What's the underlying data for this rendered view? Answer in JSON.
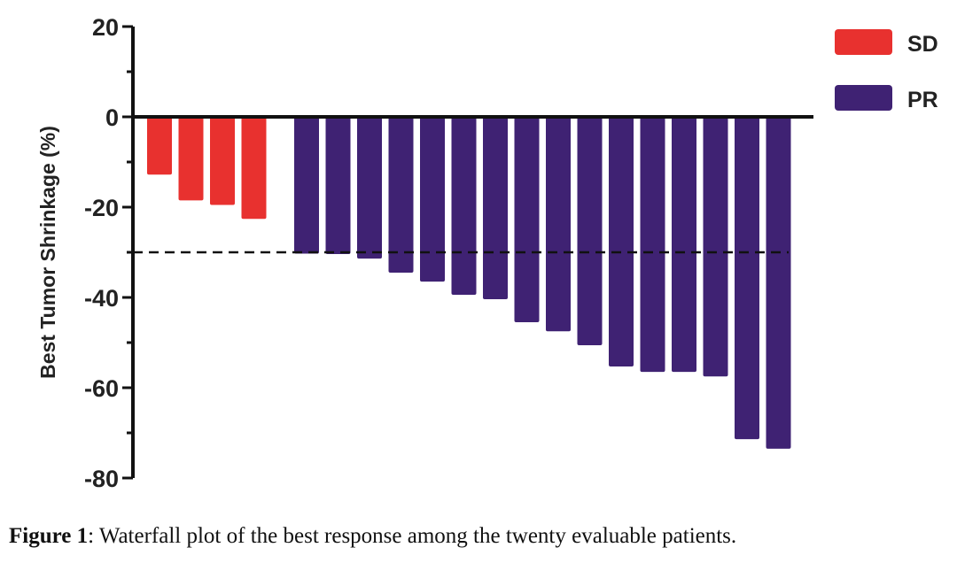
{
  "chart_data": {
    "type": "bar",
    "title": "",
    "xlabel": "",
    "ylabel": "Best Tumor Shrinkage (%)",
    "ylim": [
      -80,
      20
    ],
    "yticks": [
      20,
      0,
      -20,
      -40,
      -60,
      -80
    ],
    "yticklabels": [
      "20",
      "0",
      "-20",
      "-40",
      "-60",
      "-80"
    ],
    "reference_line": -30,
    "legend_position": "top-right",
    "series": [
      {
        "name": "SD",
        "color": "#e8312f",
        "values": [
          -12.8,
          -18.5,
          -19.5,
          -22.6
        ]
      },
      {
        "name": "PR",
        "color": "#3f2273",
        "values": [
          -30.3,
          -30.4,
          -31.4,
          -34.5,
          -36.5,
          -39.4,
          -40.4,
          -45.5,
          -47.5,
          -50.6,
          -55.3,
          -56.5,
          -56.5,
          -57.5,
          -71.4,
          -73.5
        ]
      }
    ]
  },
  "caption": {
    "label": "Figure 1",
    "text": ": Waterfall plot of the best response among the twenty evaluable patients."
  }
}
